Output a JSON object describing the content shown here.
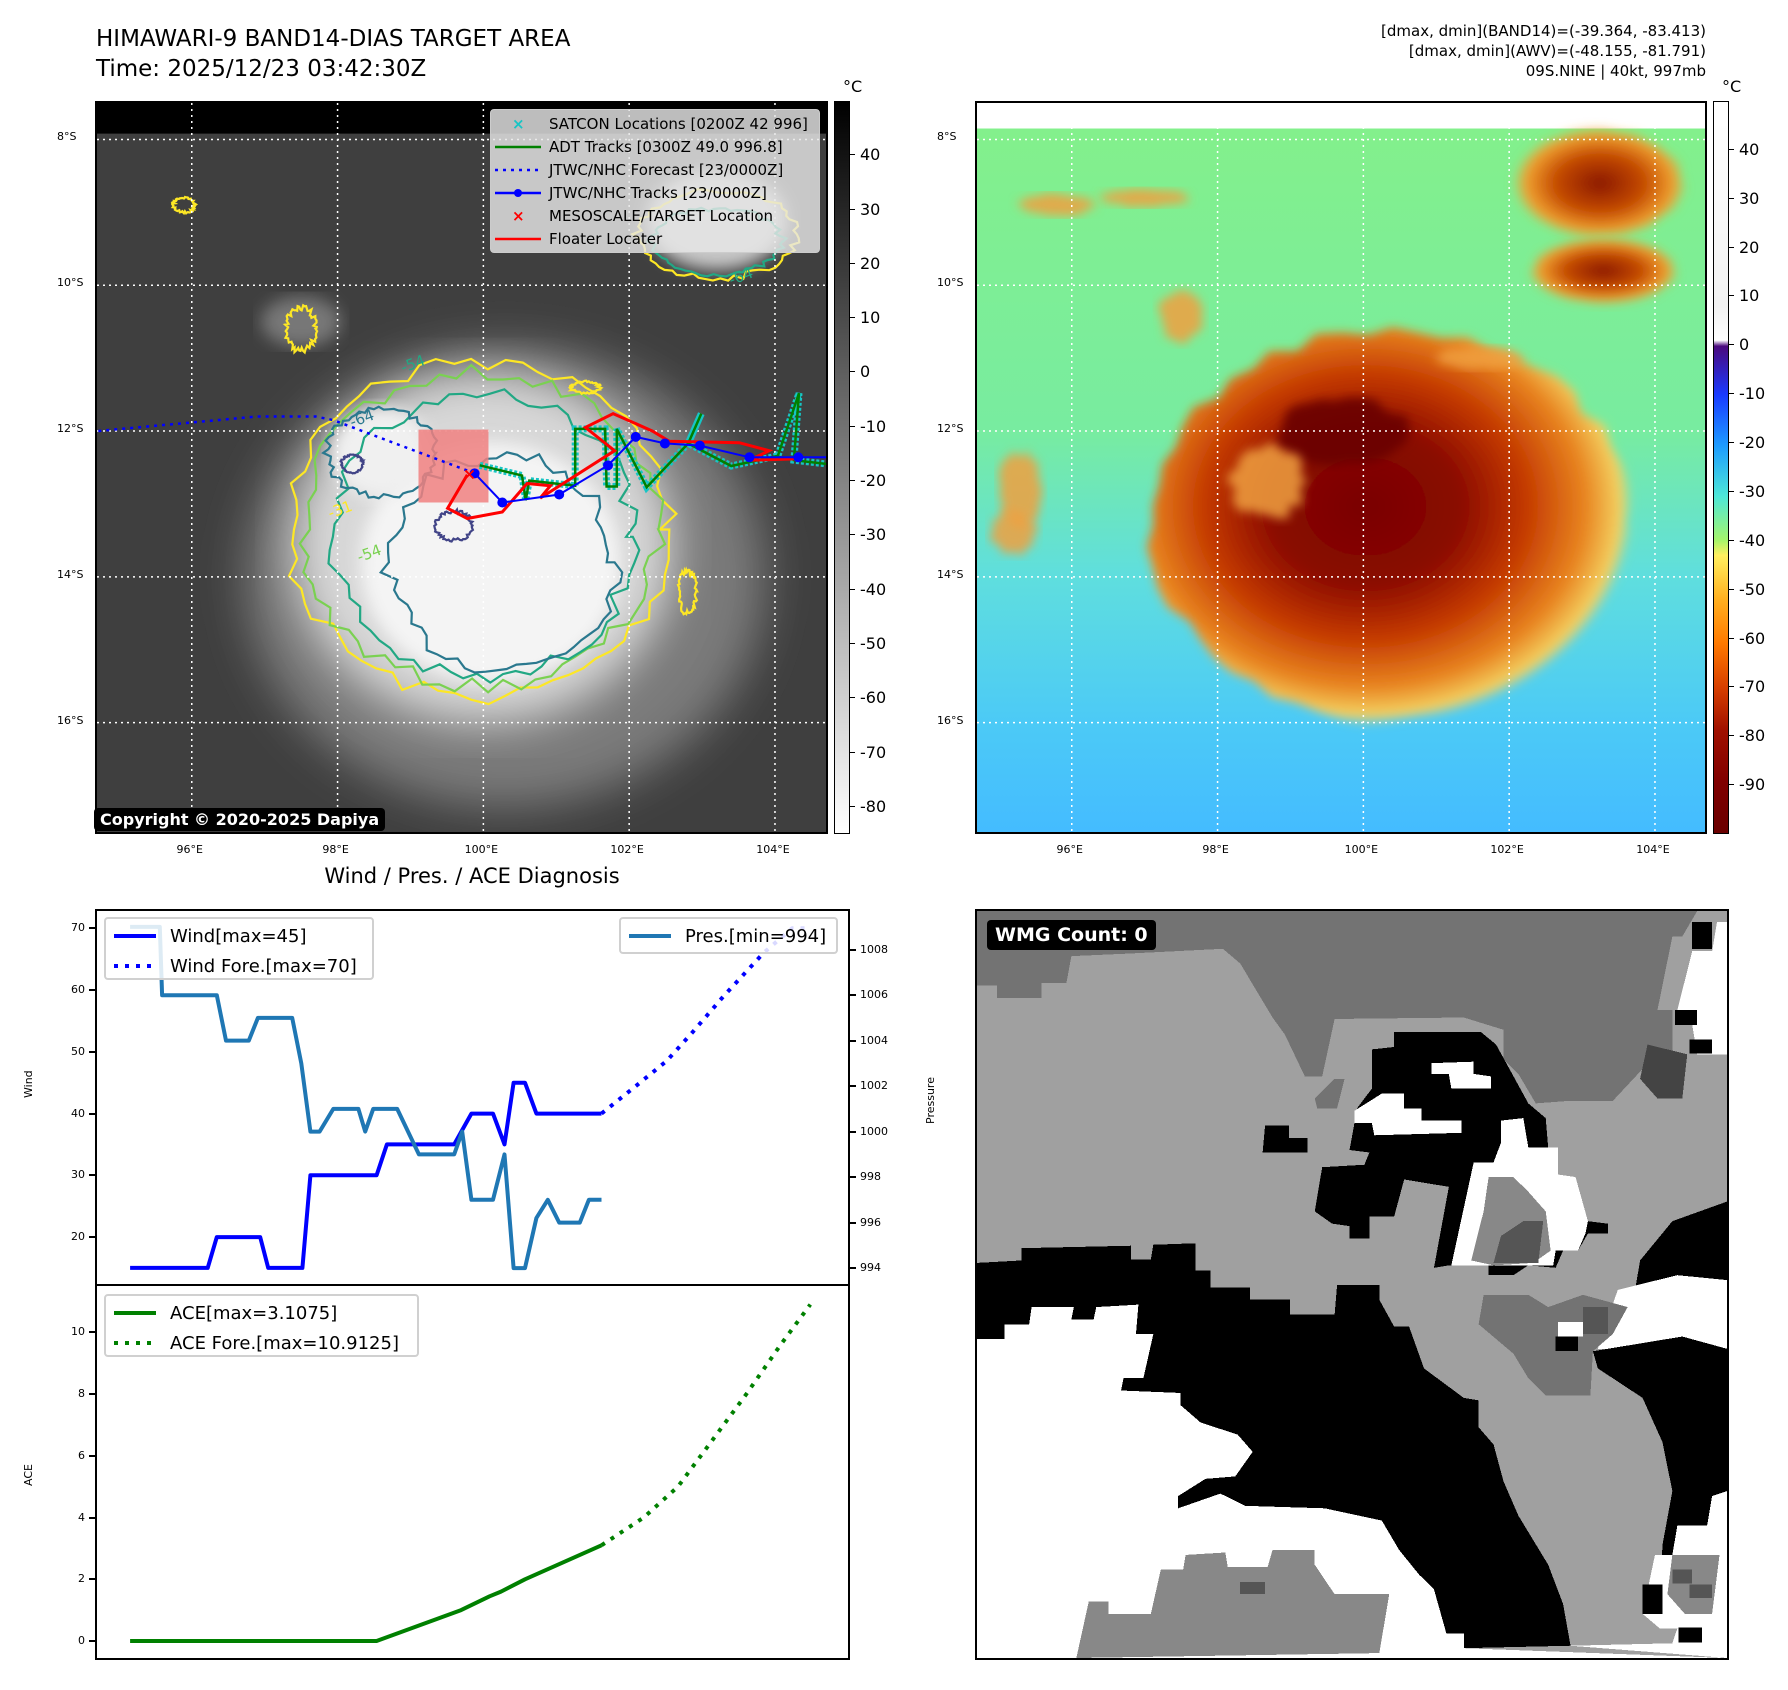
{
  "header": {
    "title_line1": "HIMAWARI-9 BAND14-DIAS TARGET AREA",
    "title_line2": "Time: 2025/12/23 03:42:30Z",
    "info_line1": "[dmax, dmin](BAND14)=(-39.364, -83.413)",
    "info_line2": "[dmax, dmin](AWV)=(-48.155, -81.791)",
    "info_line3": "09S.NINE | 40kt, 997mb"
  },
  "map": {
    "extent": {
      "lon": [
        94.7,
        104.7
      ],
      "lat": [
        -17.5,
        -7.5
      ]
    },
    "lat_labels": [
      "8°S",
      "10°S",
      "12°S",
      "14°S",
      "16°S"
    ],
    "lat_values": [
      -8,
      -10,
      -12,
      -14,
      -16
    ],
    "lon_labels": [
      "96°E",
      "98°E",
      "100°E",
      "102°E",
      "104°E"
    ],
    "lon_values": [
      96,
      98,
      100,
      102,
      104
    ],
    "copyright": "Copyright © 2020-2025 Dapiya",
    "contour_labels": [
      "-64",
      "-54",
      "-31",
      "-54",
      "-64"
    ],
    "legend": [
      {
        "label": "SATCON Locations [0200Z 42 996]",
        "color": "#17c5c5",
        "icon": "x-marker"
      },
      {
        "label": "ADT Tracks [0300Z 49.0 996.8]",
        "color": "#008000",
        "icon": "line"
      },
      {
        "label": "JTWC/NHC Forecast [23/0000Z]",
        "color": "#0000ff",
        "icon": "dotted-line"
      },
      {
        "label": "JTWC/NHC Tracks [23/0000Z]",
        "color": "#0000ff",
        "icon": "line-dot"
      },
      {
        "label": "MESOSCALE/TARGET Location",
        "color": "#ff0000",
        "icon": "x-marker"
      },
      {
        "label": "Floater Locater",
        "color": "#ff0000",
        "icon": "line"
      }
    ],
    "tracks": {
      "jtwc": [
        [
          99.88,
          -12.58
        ],
        [
          100.26,
          -12.98
        ],
        [
          101.04,
          -12.87
        ],
        [
          101.71,
          -12.47
        ],
        [
          102.09,
          -12.08
        ],
        [
          102.49,
          -12.17
        ],
        [
          102.97,
          -12.2
        ],
        [
          103.65,
          -12.36
        ],
        [
          104.32,
          -12.36
        ],
        [
          104.7,
          -12.36
        ]
      ],
      "jtwc_forecast": [
        [
          99.88,
          -12.58
        ],
        [
          98.87,
          -12.2
        ],
        [
          97.94,
          -11.85
        ],
        [
          97.7,
          -11.8
        ],
        [
          96.9,
          -11.8
        ],
        [
          95.8,
          -11.9
        ],
        [
          94.7,
          -12.0
        ]
      ],
      "adt": [
        [
          99.95,
          -12.47
        ],
        [
          100.53,
          -12.61
        ],
        [
          100.58,
          -12.95
        ],
        [
          100.63,
          -12.68
        ],
        [
          101.26,
          -12.75
        ],
        [
          101.26,
          -11.97
        ],
        [
          101.67,
          -11.97
        ],
        [
          101.69,
          -12.76
        ],
        [
          101.83,
          -12.76
        ],
        [
          101.83,
          -11.97
        ],
        [
          102.24,
          -12.77
        ],
        [
          102.81,
          -12.17
        ],
        [
          102.99,
          -11.76
        ],
        [
          102.81,
          -12.17
        ],
        [
          103.4,
          -12.48
        ],
        [
          104.04,
          -12.34
        ],
        [
          104.33,
          -11.48
        ],
        [
          104.26,
          -12.4
        ],
        [
          104.7,
          -12.45
        ]
      ],
      "floater": [
        [
          99.78,
          -12.6
        ],
        [
          99.51,
          -13.06
        ],
        [
          99.78,
          -13.2
        ],
        [
          100.26,
          -13.11
        ],
        [
          100.6,
          -12.72
        ],
        [
          100.92,
          -12.75
        ],
        [
          100.78,
          -12.92
        ],
        [
          101.8,
          -12.27
        ],
        [
          101.4,
          -11.95
        ],
        [
          101.78,
          -11.76
        ],
        [
          102.32,
          -12.0
        ],
        [
          102.55,
          -12.14
        ],
        [
          103.51,
          -12.16
        ],
        [
          103.92,
          -12.27
        ],
        [
          103.65,
          -12.4
        ],
        [
          104.33,
          -12.38
        ]
      ],
      "target_box": {
        "lon": [
          99.11,
          100.07
        ],
        "lat": [
          -12.98,
          -11.98
        ]
      }
    },
    "colorbar1": {
      "unit": "°C",
      "range": [
        -85,
        50
      ],
      "ticks": [
        40,
        30,
        20,
        10,
        0,
        -10,
        -20,
        -30,
        -40,
        -50,
        -60,
        -70,
        -80
      ]
    },
    "colorbar2": {
      "unit": "°C",
      "range": [
        -100,
        50
      ],
      "ticks": [
        40,
        30,
        20,
        10,
        0,
        -10,
        -20,
        -30,
        -40,
        -50,
        -60,
        -70,
        -80,
        -90
      ]
    }
  },
  "diagnosis": {
    "title": "Wind / Pres. / ACE Diagnosis",
    "wind_ylabel": "Wind",
    "pres_ylabel": "Pressure",
    "ace_ylabel": "ACE",
    "legend_wind": "Wind[max=45]",
    "legend_wind_fore": "Wind Fore.[max=70]",
    "legend_pres": "Pres.[min=994]",
    "legend_ace": "ACE[max=3.1075]",
    "legend_ace_fore": "ACE Fore.[max=10.9125]"
  },
  "chart_data": [
    {
      "type": "line",
      "title": "Wind / Pres. / ACE Diagnosis",
      "ylabel": "Wind",
      "y2label": "Pressure",
      "xlim": [
        -2.9,
        62.9
      ],
      "ylim": [
        12.4,
        72.8
      ],
      "y2lim": [
        993.3,
        1009.7
      ],
      "yticks": [
        20,
        30,
        40,
        50,
        60,
        70
      ],
      "y2ticks": [
        994,
        996,
        998,
        1000,
        1002,
        1004,
        1006,
        1008
      ],
      "series": [
        {
          "name": "Wind[max=45]",
          "color": "#0000ff",
          "style": "solid",
          "axis": "left",
          "points": [
            [
              0,
              15
            ],
            [
              6.8,
              15
            ],
            [
              7.6,
              20
            ],
            [
              11.4,
              20
            ],
            [
              12.1,
              15
            ],
            [
              15.1,
              15
            ],
            [
              15.8,
              30
            ],
            [
              21.6,
              30
            ],
            [
              22.5,
              35
            ],
            [
              28.4,
              35
            ],
            [
              29.9,
              40
            ],
            [
              31.8,
              40
            ],
            [
              32.8,
              35
            ],
            [
              33.6,
              45
            ],
            [
              34.6,
              45
            ],
            [
              35.6,
              40
            ],
            [
              41.3,
              40
            ]
          ]
        },
        {
          "name": "Wind Fore.[max=70]",
          "color": "#0000ff",
          "style": "dotted",
          "axis": "left",
          "points": [
            [
              41.3,
              40
            ],
            [
              44,
              44
            ],
            [
              47,
              48.5
            ],
            [
              49.2,
              53
            ],
            [
              52,
              59
            ],
            [
              54,
              63
            ],
            [
              55.5,
              66
            ],
            [
              58,
              70
            ],
            [
              59.6,
              70
            ]
          ]
        },
        {
          "name": "Pres.[min=994]",
          "color": "#1f77b4",
          "style": "solid",
          "axis": "right",
          "points": [
            [
              0,
              1009
            ],
            [
              2.6,
              1009
            ],
            [
              2.8,
              1006
            ],
            [
              7.6,
              1006
            ],
            [
              8.4,
              1004
            ],
            [
              10.4,
              1004
            ],
            [
              11.2,
              1005
            ],
            [
              14.2,
              1005
            ],
            [
              15,
              1003
            ],
            [
              15.8,
              1000
            ],
            [
              16.6,
              1000
            ],
            [
              17.8,
              1001
            ],
            [
              20,
              1001
            ],
            [
              20.6,
              1000
            ],
            [
              21.3,
              1001
            ],
            [
              23.4,
              1001
            ],
            [
              25.3,
              999
            ],
            [
              28.4,
              999
            ],
            [
              29.1,
              1000
            ],
            [
              29.9,
              997
            ],
            [
              31.8,
              997
            ],
            [
              32.8,
              999
            ],
            [
              33.6,
              994
            ],
            [
              34.6,
              994
            ],
            [
              35.6,
              996.2
            ],
            [
              36.6,
              997
            ],
            [
              37.6,
              996
            ],
            [
              39.4,
              996
            ],
            [
              40.2,
              997
            ],
            [
              41.3,
              997
            ]
          ]
        }
      ]
    },
    {
      "type": "line",
      "ylabel": "ACE",
      "xlim": [
        -2.9,
        62.9
      ],
      "ylim": [
        -0.55,
        11.5
      ],
      "yticks": [
        0,
        2,
        4,
        6,
        8,
        10
      ],
      "series": [
        {
          "name": "ACE[max=3.1075]",
          "color": "#008000",
          "style": "solid",
          "points": [
            [
              0,
              0
            ],
            [
              21.6,
              0
            ],
            [
              29,
              1.0
            ],
            [
              31.5,
              1.45
            ],
            [
              32.5,
              1.6
            ],
            [
              34.6,
              2.0
            ],
            [
              41.3,
              3.1
            ]
          ]
        },
        {
          "name": "ACE Fore.[max=10.9125]",
          "color": "#008000",
          "style": "dotted",
          "points": [
            [
              41.3,
              3.1
            ],
            [
              45,
              4
            ],
            [
              48,
              5
            ],
            [
              51,
              6.5
            ],
            [
              54,
              8
            ],
            [
              57,
              9.6
            ],
            [
              59.6,
              10.9
            ]
          ]
        }
      ]
    }
  ],
  "wmg": {
    "label": "WMG Count: 0"
  }
}
